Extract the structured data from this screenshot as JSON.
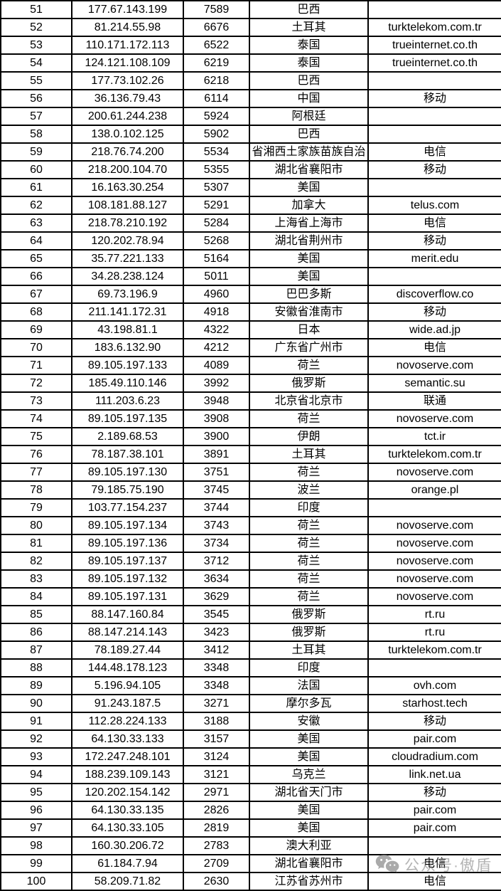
{
  "table": {
    "column_keys": [
      "rank",
      "ip-address",
      "count",
      "region",
      "operator-or-domain"
    ],
    "rows": [
      [
        "51",
        "177.67.143.199",
        "7589",
        "巴西",
        ""
      ],
      [
        "52",
        "81.214.55.98",
        "6676",
        "土耳其",
        "turktelekom.com.tr"
      ],
      [
        "53",
        "110.171.172.113",
        "6522",
        "泰国",
        "trueinternet.co.th"
      ],
      [
        "54",
        "124.121.108.109",
        "6219",
        "泰国",
        "trueinternet.co.th"
      ],
      [
        "55",
        "177.73.102.26",
        "6218",
        "巴西",
        ""
      ],
      [
        "56",
        "36.136.79.43",
        "6114",
        "中国",
        "移动"
      ],
      [
        "57",
        "200.61.244.238",
        "5924",
        "阿根廷",
        ""
      ],
      [
        "58",
        "138.0.102.125",
        "5902",
        "巴西",
        ""
      ],
      [
        "59",
        "218.76.74.200",
        "5534",
        "省湘西土家族苗族自治",
        "电信"
      ],
      [
        "60",
        "218.200.104.70",
        "5355",
        "湖北省襄阳市",
        "移动"
      ],
      [
        "61",
        "16.163.30.254",
        "5307",
        "美国",
        ""
      ],
      [
        "62",
        "108.181.88.127",
        "5291",
        "加拿大",
        "telus.com"
      ],
      [
        "63",
        "218.78.210.192",
        "5284",
        "上海省上海市",
        "电信"
      ],
      [
        "64",
        "120.202.78.94",
        "5268",
        "湖北省荆州市",
        "移动"
      ],
      [
        "65",
        "35.77.221.133",
        "5164",
        "美国",
        "merit.edu"
      ],
      [
        "66",
        "34.28.238.124",
        "5011",
        "美国",
        ""
      ],
      [
        "67",
        "69.73.196.9",
        "4960",
        "巴巴多斯",
        "discoverflow.co"
      ],
      [
        "68",
        "211.141.172.31",
        "4918",
        "安徽省淮南市",
        "移动"
      ],
      [
        "69",
        "43.198.81.1",
        "4322",
        "日本",
        "wide.ad.jp"
      ],
      [
        "70",
        "183.6.132.90",
        "4212",
        "广东省广州市",
        "电信"
      ],
      [
        "71",
        "89.105.197.133",
        "4089",
        "荷兰",
        "novoserve.com"
      ],
      [
        "72",
        "185.49.110.146",
        "3992",
        "俄罗斯",
        "semantic.su"
      ],
      [
        "73",
        "111.203.6.23",
        "3948",
        "北京省北京市",
        "联通"
      ],
      [
        "74",
        "89.105.197.135",
        "3908",
        "荷兰",
        "novoserve.com"
      ],
      [
        "75",
        "2.189.68.53",
        "3900",
        "伊朗",
        "tct.ir"
      ],
      [
        "76",
        "78.187.38.101",
        "3891",
        "土耳其",
        "turktelekom.com.tr"
      ],
      [
        "77",
        "89.105.197.130",
        "3751",
        "荷兰",
        "novoserve.com"
      ],
      [
        "78",
        "79.185.75.190",
        "3745",
        "波兰",
        "orange.pl"
      ],
      [
        "79",
        "103.77.154.237",
        "3744",
        "印度",
        ""
      ],
      [
        "80",
        "89.105.197.134",
        "3743",
        "荷兰",
        "novoserve.com"
      ],
      [
        "81",
        "89.105.197.136",
        "3734",
        "荷兰",
        "novoserve.com"
      ],
      [
        "82",
        "89.105.197.137",
        "3712",
        "荷兰",
        "novoserve.com"
      ],
      [
        "83",
        "89.105.197.132",
        "3634",
        "荷兰",
        "novoserve.com"
      ],
      [
        "84",
        "89.105.197.131",
        "3629",
        "荷兰",
        "novoserve.com"
      ],
      [
        "85",
        "88.147.160.84",
        "3545",
        "俄罗斯",
        "rt.ru"
      ],
      [
        "86",
        "88.147.214.143",
        "3423",
        "俄罗斯",
        "rt.ru"
      ],
      [
        "87",
        "78.189.27.44",
        "3412",
        "土耳其",
        "turktelekom.com.tr"
      ],
      [
        "88",
        "144.48.178.123",
        "3348",
        "印度",
        ""
      ],
      [
        "89",
        "5.196.94.105",
        "3348",
        "法国",
        "ovh.com"
      ],
      [
        "90",
        "91.243.187.5",
        "3271",
        "摩尔多瓦",
        "starhost.tech"
      ],
      [
        "91",
        "112.28.224.133",
        "3188",
        "安徽",
        "移动"
      ],
      [
        "92",
        "64.130.33.133",
        "3157",
        "美国",
        "pair.com"
      ],
      [
        "93",
        "172.247.248.101",
        "3124",
        "美国",
        "cloudradium.com"
      ],
      [
        "94",
        "188.239.109.143",
        "3121",
        "乌克兰",
        "link.net.ua"
      ],
      [
        "95",
        "120.202.154.142",
        "2971",
        "湖北省天门市",
        "移动"
      ],
      [
        "96",
        "64.130.33.135",
        "2826",
        "美国",
        "pair.com"
      ],
      [
        "97",
        "64.130.33.105",
        "2819",
        "美国",
        "pair.com"
      ],
      [
        "98",
        "160.30.206.72",
        "2783",
        "澳大利亚",
        ""
      ],
      [
        "99",
        "61.184.7.94",
        "2709",
        "湖北省襄阳市",
        "电信"
      ],
      [
        "100",
        "58.209.71.82",
        "2630",
        "江苏省苏州市",
        "电信"
      ]
    ]
  },
  "watermark": {
    "icon": "wechat-icon",
    "text": "公众号·傲盾"
  },
  "colors": {
    "border": "#000000",
    "text": "#000000",
    "watermark_gray": "#828282"
  }
}
